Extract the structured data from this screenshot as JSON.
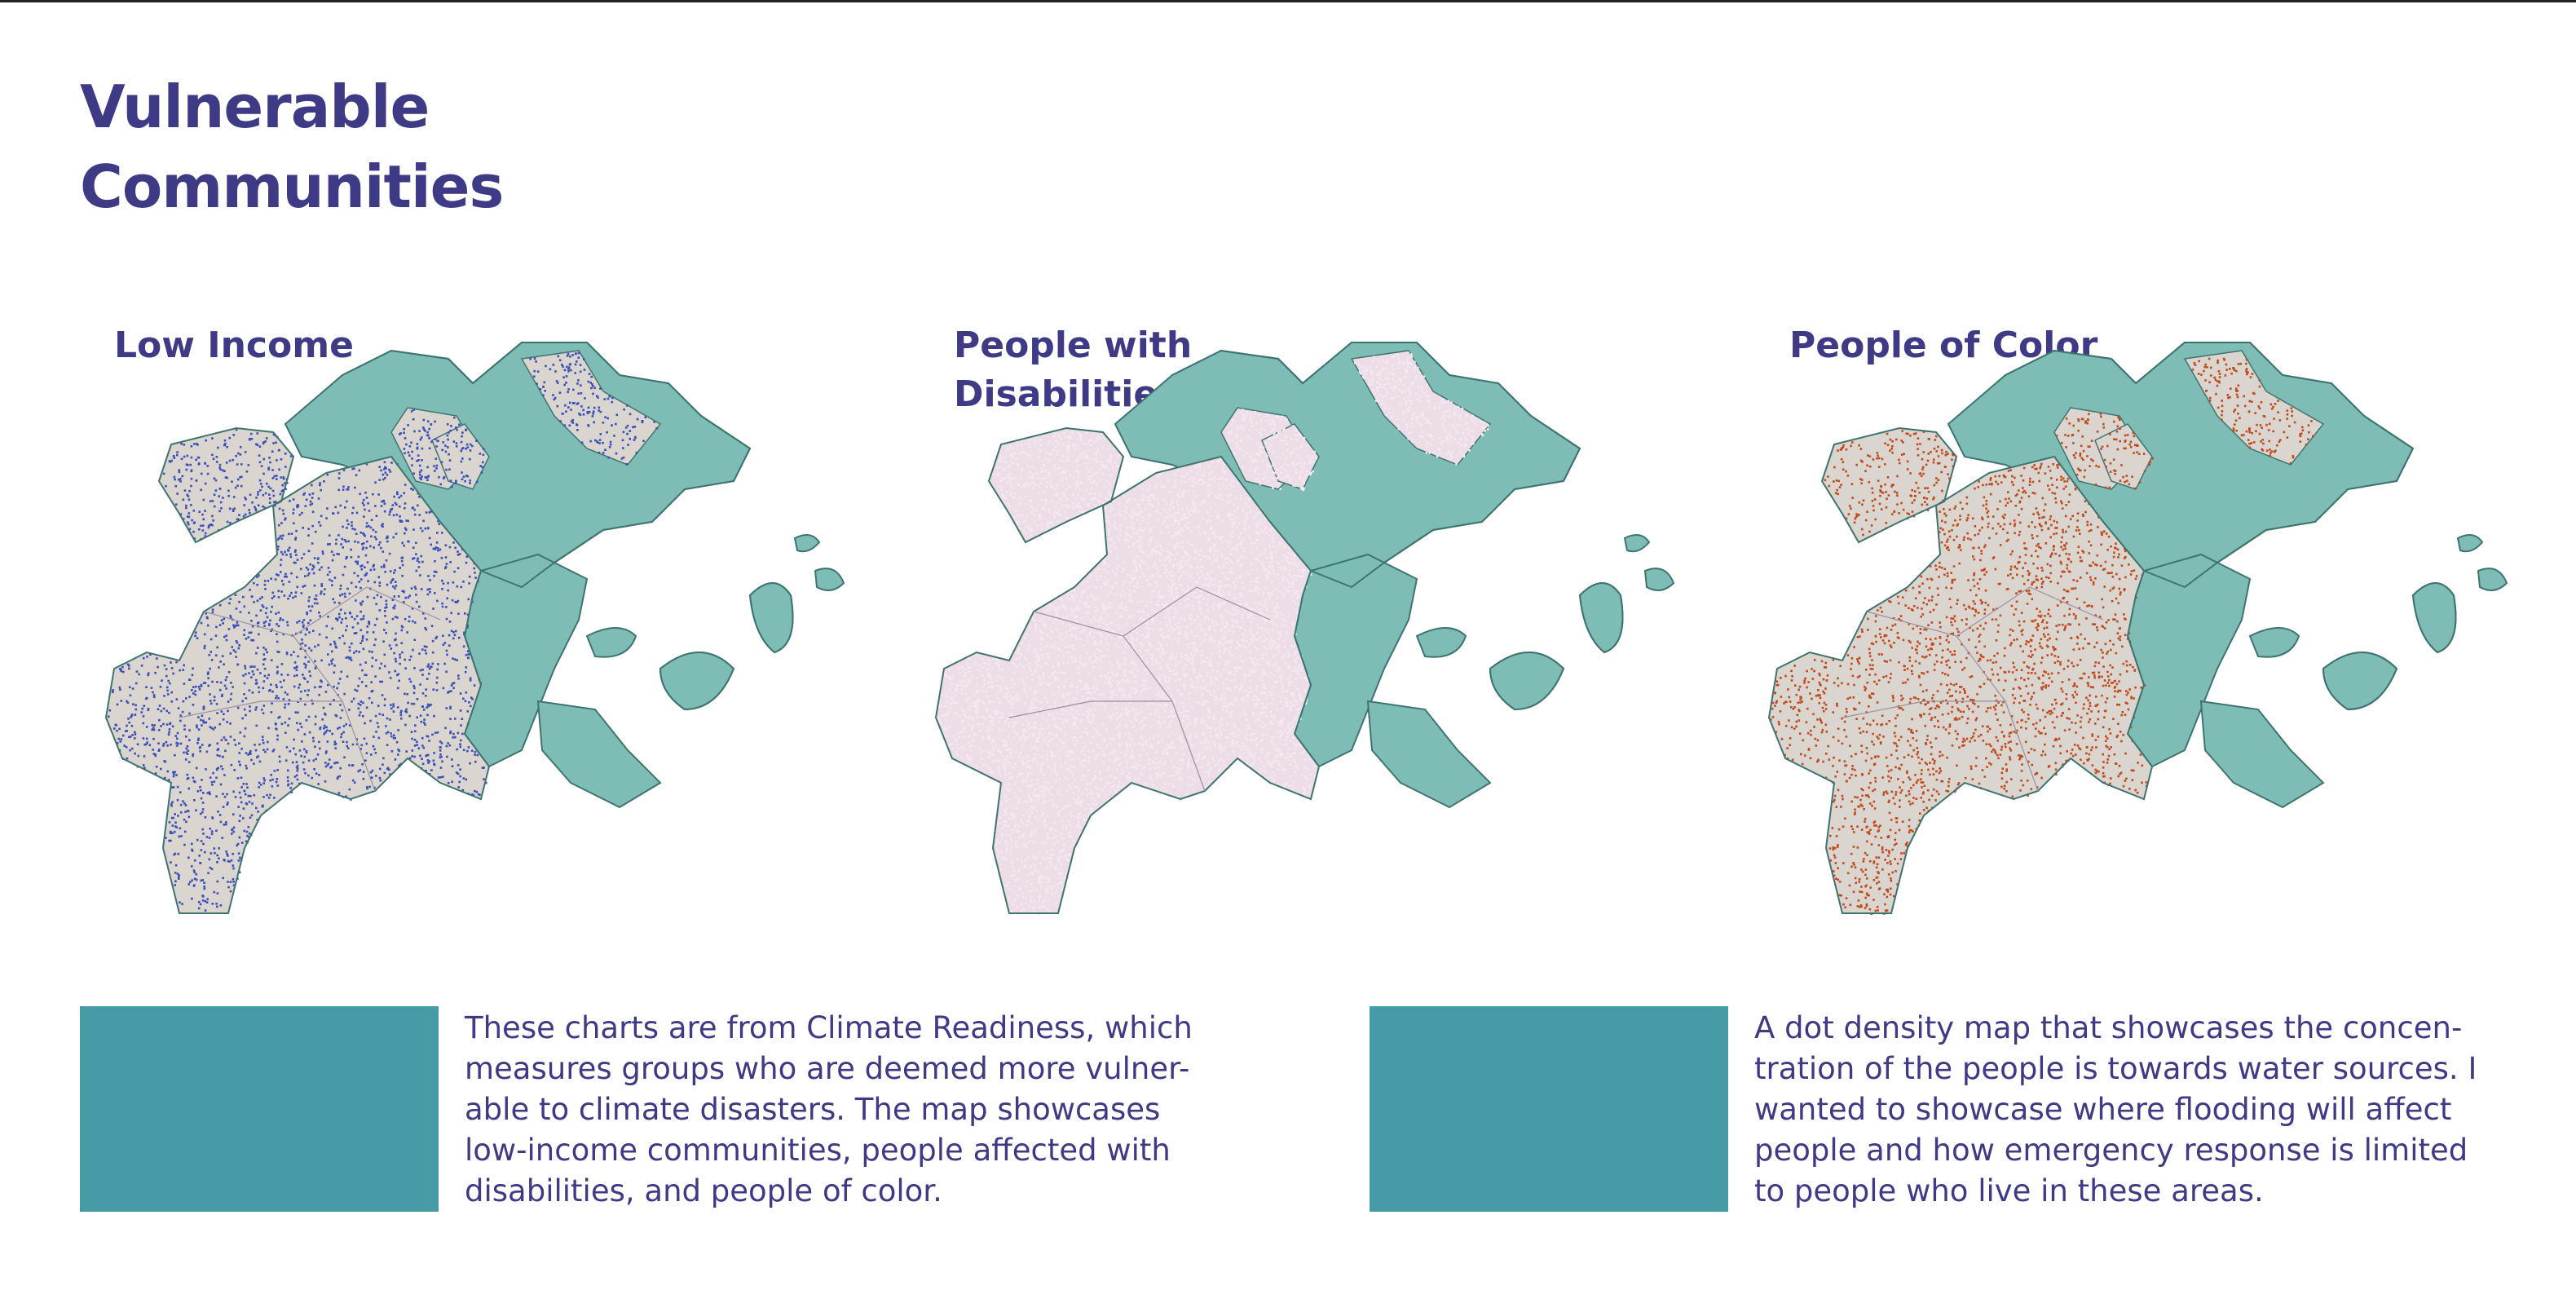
{
  "page": {
    "title_lines": [
      "Vulnerable",
      "Communities"
    ]
  },
  "colors": {
    "title": "#3e3a86",
    "land": "#dbd5d0",
    "land_disabilities": "#ecdde6",
    "water_zone": "#7ebdb5",
    "water_outline": "#3f7470",
    "low_income_dots": "#3a4fb8",
    "disability_dots": "#f6e8f2",
    "people_of_color_dots": "#c04a1c",
    "teal_block": "#469ba7"
  },
  "maps": [
    {
      "id": "low-income",
      "title_lines": [
        "Low Income"
      ],
      "dot_color": "#3a4fb8",
      "land_color": "#dbd5d0",
      "density": "high"
    },
    {
      "id": "disabilities",
      "title_lines": [
        "People with",
        "Disabilities"
      ],
      "dot_color": "#f6e8f2",
      "land_color": "#ecdde6",
      "density": "very-high"
    },
    {
      "id": "people-of-color",
      "title_lines": [
        "People of Color"
      ],
      "dot_color": "#c04a1c",
      "land_color": "#dbd5d0",
      "density": "high"
    }
  ],
  "descriptions": [
    {
      "lines": [
        "These charts are from Climate Readiness, which",
        "measures groups who are deemed more vulner-",
        "able to climate disasters. The map showcases",
        "low-income communities, people affected with",
        "disabilities, and people of color."
      ]
    },
    {
      "lines": [
        "A dot density map that showcases the concen-",
        "tration of the people is towards water sources. I",
        "wanted to showcase where flooding will affect",
        "people and how emergency response is limited",
        "to people who live in these areas."
      ]
    }
  ]
}
